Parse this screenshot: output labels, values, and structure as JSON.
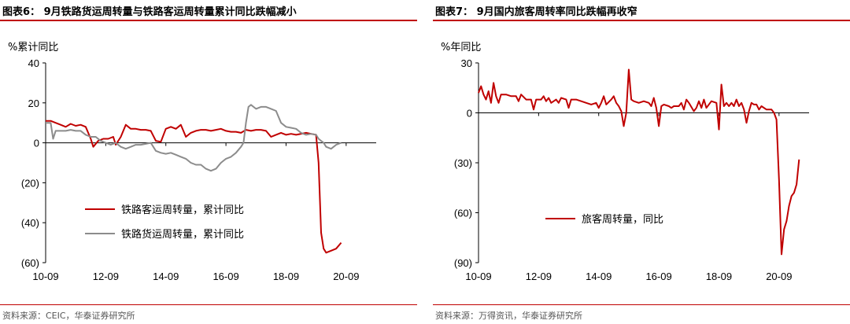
{
  "left": {
    "title": "图表6： 9月铁路货运周转量与铁路客运周转量累计同比跌幅减小",
    "source": "资料来源：CEIC，华泰证券研究所",
    "chart_data": {
      "type": "line",
      "ylabel": "%累计同比",
      "ylim": [
        -60,
        40
      ],
      "yticks": [
        40,
        20,
        0,
        -20,
        -40,
        -60
      ],
      "ytick_labels": [
        "40",
        "20",
        "0",
        "(20)",
        "(40)",
        "(60)"
      ],
      "xlim": [
        0,
        132
      ],
      "xticks": [
        0,
        24,
        48,
        72,
        96,
        120
      ],
      "xtick_labels": [
        "10-09",
        "12-09",
        "14-09",
        "16-09",
        "18-09",
        "20-09"
      ],
      "legend_position": "lower-center",
      "series": [
        {
          "name": "铁路客运周转量，累计同比",
          "color": "#c00000",
          "points": [
            [
              0,
              11
            ],
            [
              2,
              11
            ],
            [
              4,
              10
            ],
            [
              6,
              9
            ],
            [
              8,
              8
            ],
            [
              10,
              9.5
            ],
            [
              12,
              8.5
            ],
            [
              14,
              9
            ],
            [
              16,
              8
            ],
            [
              18,
              2
            ],
            [
              19,
              -2
            ],
            [
              21,
              1
            ],
            [
              23,
              2
            ],
            [
              25,
              2
            ],
            [
              27,
              3
            ],
            [
              28,
              -1
            ],
            [
              30,
              3
            ],
            [
              32,
              9
            ],
            [
              34,
              7
            ],
            [
              36,
              7
            ],
            [
              38,
              6.5
            ],
            [
              40,
              6.5
            ],
            [
              42,
              6
            ],
            [
              44,
              1
            ],
            [
              46,
              0.5
            ],
            [
              48,
              7
            ],
            [
              50,
              8
            ],
            [
              52,
              7
            ],
            [
              54,
              9
            ],
            [
              56,
              3
            ],
            [
              58,
              5
            ],
            [
              60,
              6
            ],
            [
              62,
              6.5
            ],
            [
              64,
              6.5
            ],
            [
              66,
              6
            ],
            [
              68,
              6.5
            ],
            [
              70,
              7
            ],
            [
              72,
              6
            ],
            [
              74,
              5.5
            ],
            [
              76,
              5.5
            ],
            [
              78,
              5
            ],
            [
              80,
              6.5
            ],
            [
              82,
              6
            ],
            [
              84,
              6.5
            ],
            [
              86,
              6.5
            ],
            [
              88,
              6
            ],
            [
              90,
              3
            ],
            [
              92,
              4
            ],
            [
              94,
              5
            ],
            [
              96,
              4
            ],
            [
              98,
              4.5
            ],
            [
              100,
              4
            ],
            [
              102,
              4.5
            ],
            [
              104,
              5
            ],
            [
              106,
              4.5
            ],
            [
              108,
              4
            ],
            [
              109,
              -10
            ],
            [
              110,
              -45
            ],
            [
              111,
              -53
            ],
            [
              112,
              -55
            ],
            [
              114,
              -54
            ],
            [
              116,
              -53
            ],
            [
              118,
              -50
            ]
          ]
        },
        {
          "name": "铁路货运周转量，累计同比",
          "color": "#8c8c8c",
          "points": [
            [
              0,
              10
            ],
            [
              2,
              10
            ],
            [
              3,
              2
            ],
            [
              4,
              6
            ],
            [
              6,
              6
            ],
            [
              8,
              6
            ],
            [
              10,
              6.5
            ],
            [
              12,
              6
            ],
            [
              14,
              6
            ],
            [
              16,
              4
            ],
            [
              18,
              3
            ],
            [
              20,
              3
            ],
            [
              22,
              1
            ],
            [
              24,
              0
            ],
            [
              26,
              -1
            ],
            [
              28,
              0
            ],
            [
              30,
              -2
            ],
            [
              32,
              -3
            ],
            [
              34,
              -2
            ],
            [
              36,
              -1
            ],
            [
              38,
              -1
            ],
            [
              40,
              -0.5
            ],
            [
              42,
              0
            ],
            [
              44,
              -4
            ],
            [
              46,
              -5
            ],
            [
              48,
              -5.5
            ],
            [
              50,
              -5
            ],
            [
              52,
              -6
            ],
            [
              54,
              -7
            ],
            [
              56,
              -8
            ],
            [
              58,
              -10
            ],
            [
              60,
              -11
            ],
            [
              62,
              -11
            ],
            [
              64,
              -13
            ],
            [
              66,
              -14
            ],
            [
              68,
              -13
            ],
            [
              70,
              -10
            ],
            [
              72,
              -8
            ],
            [
              74,
              -7
            ],
            [
              76,
              -5
            ],
            [
              78,
              -2
            ],
            [
              79,
              0
            ],
            [
              80,
              10
            ],
            [
              81,
              18
            ],
            [
              82,
              19
            ],
            [
              84,
              17
            ],
            [
              86,
              18
            ],
            [
              88,
              18
            ],
            [
              90,
              17
            ],
            [
              92,
              16
            ],
            [
              94,
              10
            ],
            [
              96,
              8
            ],
            [
              98,
              7.5
            ],
            [
              100,
              7
            ],
            [
              102,
              5
            ],
            [
              104,
              4
            ],
            [
              106,
              4.5
            ],
            [
              108,
              4
            ],
            [
              109,
              2
            ],
            [
              110,
              1
            ],
            [
              111,
              0
            ],
            [
              112,
              -2
            ],
            [
              114,
              -3
            ],
            [
              116,
              -1
            ],
            [
              118,
              0
            ]
          ]
        }
      ]
    }
  },
  "right": {
    "title": "图表7： 9月国内旅客周转率同比跌幅再收窄",
    "source": "资料来源：万得资讯，华泰证券研究所",
    "chart_data": {
      "type": "line",
      "ylabel": "%年同比",
      "ylim": [
        -90,
        30
      ],
      "yticks": [
        30,
        0,
        -30,
        -60,
        -90
      ],
      "ytick_labels": [
        "30",
        "0",
        "(30)",
        "(60)",
        "(90)"
      ],
      "xlim": [
        0,
        132
      ],
      "xticks": [
        0,
        24,
        48,
        72,
        96,
        120
      ],
      "xtick_labels": [
        "10-09",
        "12-09",
        "14-09",
        "16-09",
        "18-09",
        "20-09"
      ],
      "legend_position": "lower-center",
      "series": [
        {
          "name": "旅客周转量，同比",
          "color": "#c00000",
          "points": [
            [
              0,
              12
            ],
            [
              1,
              16
            ],
            [
              2,
              11
            ],
            [
              3,
              8
            ],
            [
              4,
              13
            ],
            [
              5,
              6
            ],
            [
              6,
              18
            ],
            [
              7,
              10
            ],
            [
              8,
              6
            ],
            [
              9,
              11
            ],
            [
              11,
              11
            ],
            [
              13,
              10
            ],
            [
              15,
              10
            ],
            [
              16,
              7
            ],
            [
              17,
              11
            ],
            [
              19,
              8
            ],
            [
              21,
              8
            ],
            [
              22,
              2
            ],
            [
              23,
              8
            ],
            [
              25,
              8
            ],
            [
              26,
              10
            ],
            [
              27,
              7
            ],
            [
              28,
              9
            ],
            [
              29,
              6
            ],
            [
              31,
              8
            ],
            [
              32,
              6
            ],
            [
              33,
              9
            ],
            [
              35,
              8
            ],
            [
              36,
              3
            ],
            [
              37,
              8
            ],
            [
              39,
              8
            ],
            [
              41,
              7
            ],
            [
              43,
              6
            ],
            [
              45,
              5
            ],
            [
              47,
              6
            ],
            [
              48,
              3
            ],
            [
              49,
              6
            ],
            [
              50,
              10
            ],
            [
              51,
              5
            ],
            [
              53,
              8
            ],
            [
              54,
              10
            ],
            [
              55,
              6
            ],
            [
              56,
              4
            ],
            [
              57,
              1
            ],
            [
              58,
              -8
            ],
            [
              59,
              0
            ],
            [
              60,
              26
            ],
            [
              61,
              8
            ],
            [
              62,
              7
            ],
            [
              64,
              6
            ],
            [
              66,
              7
            ],
            [
              68,
              6
            ],
            [
              69,
              4
            ],
            [
              70,
              9
            ],
            [
              71,
              3
            ],
            [
              72,
              -8
            ],
            [
              73,
              4
            ],
            [
              74,
              5
            ],
            [
              76,
              4
            ],
            [
              77,
              3
            ],
            [
              78,
              4
            ],
            [
              80,
              4
            ],
            [
              81,
              6
            ],
            [
              82,
              2
            ],
            [
              83,
              8
            ],
            [
              84,
              6
            ],
            [
              86,
              1
            ],
            [
              87,
              3
            ],
            [
              88,
              7
            ],
            [
              89,
              3
            ],
            [
              90,
              8
            ],
            [
              91,
              3
            ],
            [
              93,
              7
            ],
            [
              95,
              6
            ],
            [
              96,
              -10
            ],
            [
              97,
              17
            ],
            [
              98,
              4
            ],
            [
              99,
              6
            ],
            [
              100,
              4
            ],
            [
              101,
              6
            ],
            [
              102,
              4
            ],
            [
              103,
              8
            ],
            [
              104,
              4
            ],
            [
              105,
              6
            ],
            [
              106,
              2
            ],
            [
              107,
              -6
            ],
            [
              108,
              1
            ],
            [
              109,
              6
            ],
            [
              110,
              5
            ],
            [
              111,
              5
            ],
            [
              112,
              2
            ],
            [
              113,
              4
            ],
            [
              115,
              2
            ],
            [
              117,
              2
            ],
            [
              118,
              0
            ],
            [
              119,
              -4
            ],
            [
              120,
              -40
            ],
            [
              121,
              -85
            ],
            [
              122,
              -70
            ],
            [
              123,
              -65
            ],
            [
              124,
              -56
            ],
            [
              125,
              -50
            ],
            [
              126,
              -48
            ],
            [
              127,
              -43
            ],
            [
              128,
              -28
            ]
          ]
        }
      ]
    }
  }
}
